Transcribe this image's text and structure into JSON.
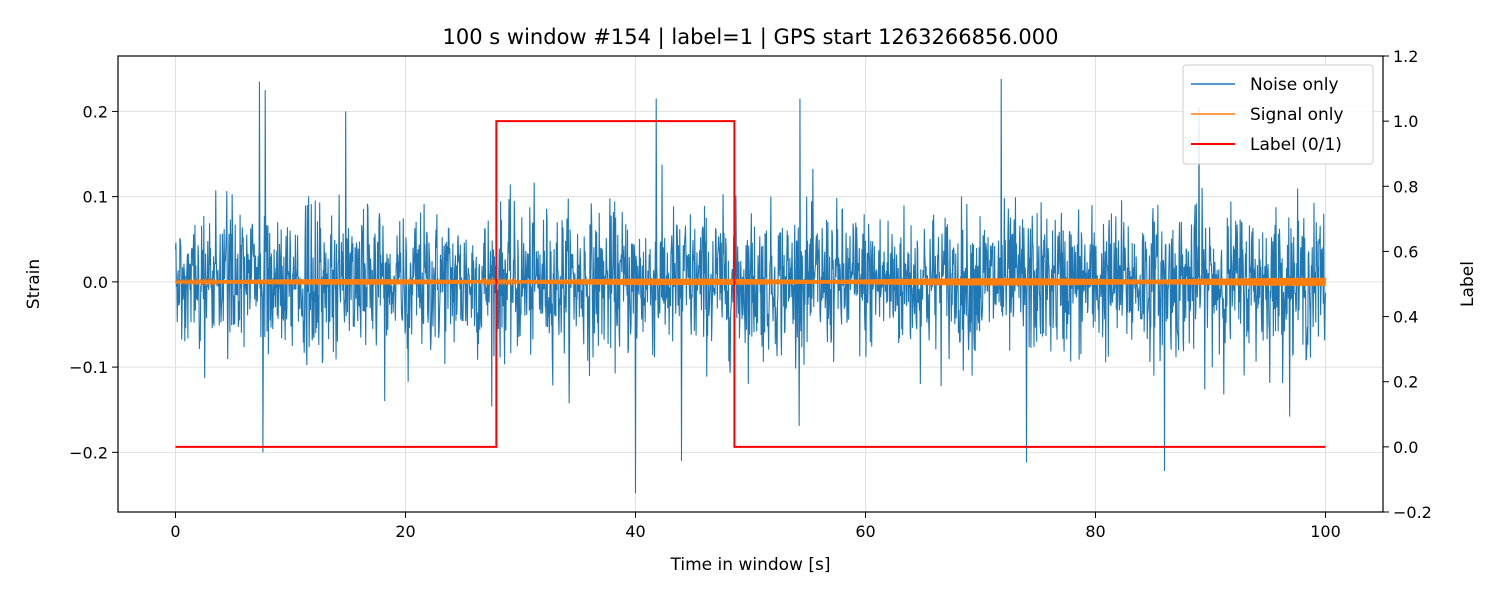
{
  "chart_data": {
    "type": "line",
    "title": "100 s window #154 | label=1 | GPS start 1263266856.000",
    "xlabel": "Time in window [s]",
    "ylabel": "Strain",
    "y2label": "Label",
    "xlim": [
      -5,
      105
    ],
    "ylim": [
      -0.27,
      0.265
    ],
    "y2lim": [
      -0.2,
      1.2
    ],
    "xticks": [
      0,
      20,
      40,
      60,
      80,
      100
    ],
    "xtick_labels": [
      "0",
      "20",
      "40",
      "60",
      "80",
      "100"
    ],
    "yticks": [
      -0.2,
      -0.1,
      0.0,
      0.1,
      0.2
    ],
    "ytick_labels": [
      "−0.2",
      "−0.1",
      "0.0",
      "0.1",
      "0.2"
    ],
    "y2ticks": [
      -0.2,
      0.0,
      0.2,
      0.4,
      0.6,
      0.8,
      1.0,
      1.2
    ],
    "y2tick_labels": [
      "−0.2",
      "0.0",
      "0.2",
      "0.4",
      "0.6",
      "0.8",
      "1.0",
      "1.2"
    ],
    "grid": true,
    "legend_position": "top-right",
    "series": [
      {
        "name": "Noise only",
        "color": "#1f77b4",
        "axis": "left",
        "kind": "noise",
        "x_range": [
          0,
          100
        ],
        "typical_amplitude": 0.1,
        "peaks": [
          {
            "x": 7.3,
            "y": 0.235
          },
          {
            "x": 7.8,
            "y": 0.225
          },
          {
            "x": 14.8,
            "y": 0.2
          },
          {
            "x": 41.8,
            "y": 0.215
          },
          {
            "x": 54.3,
            "y": 0.215
          },
          {
            "x": 71.8,
            "y": 0.238
          },
          {
            "x": 89.0,
            "y": 0.205
          },
          {
            "x": 40.0,
            "y": -0.248
          },
          {
            "x": 44.0,
            "y": -0.21
          },
          {
            "x": 74.0,
            "y": -0.212
          },
          {
            "x": 86.0,
            "y": -0.222
          },
          {
            "x": 7.6,
            "y": -0.2
          }
        ]
      },
      {
        "name": "Signal only",
        "color": "#ff7f0e",
        "axis": "left",
        "kind": "oscillation",
        "x_range": [
          0,
          100
        ],
        "typical_amplitude": 0.003
      },
      {
        "name": "Label (0/1)",
        "color": "#ff0000",
        "axis": "right",
        "kind": "step",
        "x": [
          0,
          27.9,
          27.9,
          48.6,
          48.6,
          100
        ],
        "y": [
          0,
          0,
          1,
          1,
          0,
          0
        ]
      }
    ]
  }
}
